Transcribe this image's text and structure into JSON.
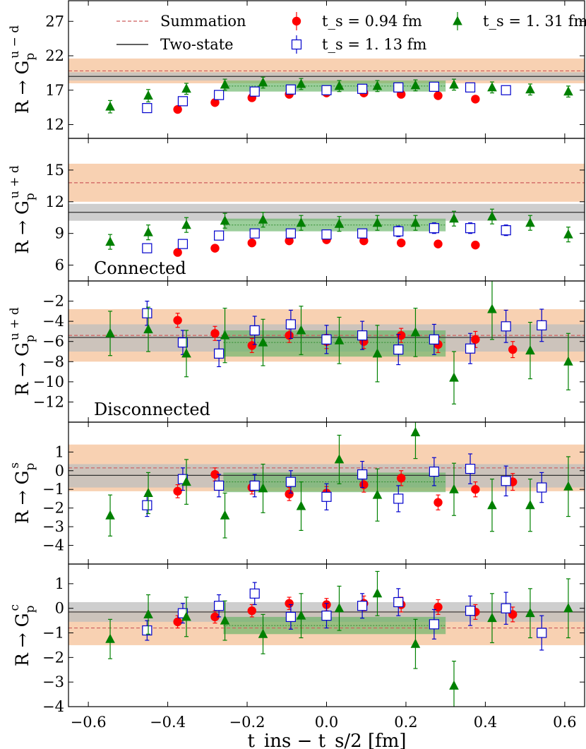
{
  "chart_data": {
    "type": "scatter",
    "title": "",
    "xlabel": "t_ins − t_s/2 [fm]",
    "xlim": [
      -0.65,
      0.65
    ],
    "xticks": [
      -0.6,
      -0.4,
      -0.2,
      0.0,
      0.2,
      0.4,
      0.6
    ],
    "xtick_labels": [
      "−0.6",
      "−0.4",
      "−0.2",
      "0.0",
      "0.2",
      "0.4",
      "0.6"
    ],
    "legend": {
      "placement": "top",
      "entries": [
        {
          "key": "summation",
          "label": "Summation",
          "style": "dashed-line",
          "color": "#cd5c5c"
        },
        {
          "key": "ts094",
          "label": "t_s = 0.94 fm",
          "style": "circle",
          "color": "#ff0000"
        },
        {
          "key": "ts131",
          "label": "t_s = 1. 31 fm",
          "style": "triangle",
          "color": "#008000"
        },
        {
          "key": "twostate",
          "label": "Two-state",
          "style": "solid-line",
          "color": "#000000"
        },
        {
          "key": "ts113",
          "label": "t_s = 1. 13 fm",
          "style": "open-square",
          "color": "#0000cc"
        }
      ]
    },
    "colors": {
      "summation_band": "#f7c9a4",
      "summation_line": "#cd5c5c",
      "twostate_band": "#bdbdbd",
      "twostate_line": "#333333",
      "fit_band": "#66b366",
      "fit_line": "#2e8b2e",
      "ts094": "#ff0000",
      "ts113": "#0000cc",
      "ts131": "#008000"
    },
    "panels": [
      {
        "ylabel_main": "R → G",
        "ylabel_sub": "p",
        "ylabel_sup": "u − d",
        "ylim": [
          10,
          30
        ],
        "yticks": [
          12,
          17,
          22,
          27
        ],
        "annotation": "",
        "summation": {
          "value": 19.8,
          "lo": 18.0,
          "hi": 21.6
        },
        "twostate": {
          "value": 19.0,
          "lo": 18.4,
          "hi": 19.6
        },
        "fit": {
          "xmin": -0.26,
          "xmax": 0.3,
          "value": 17.6,
          "lo": 16.8,
          "hi": 18.4
        },
        "series": [
          {
            "name": "t_s = 0.94 fm",
            "marker": "circle",
            "x": [
              -0.375,
              -0.281,
              -0.188,
              -0.094,
              0.0,
              0.094,
              0.188,
              0.281,
              0.375
            ],
            "y": [
              14.2,
              15.2,
              15.9,
              16.4,
              16.6,
              16.6,
              16.4,
              16.2,
              15.7
            ],
            "err": [
              0.3,
              0.3,
              0.3,
              0.3,
              0.3,
              0.3,
              0.3,
              0.3,
              0.3
            ]
          },
          {
            "name": "t_s = 1. 13 fm",
            "marker": "square",
            "x": [
              -0.452,
              -0.362,
              -0.271,
              -0.181,
              -0.09,
              0.0,
              0.09,
              0.181,
              0.271,
              0.362,
              0.452
            ],
            "y": [
              14.4,
              15.4,
              16.3,
              16.8,
              17.1,
              17.0,
              17.2,
              17.4,
              17.5,
              17.4,
              17.0
            ],
            "err": [
              0.4,
              0.4,
              0.5,
              0.5,
              0.5,
              0.5,
              0.5,
              0.5,
              0.5,
              0.6,
              0.6
            ]
          },
          {
            "name": "t_s = 1. 31 fm",
            "marker": "triangle",
            "x": [
              -0.545,
              -0.449,
              -0.353,
              -0.256,
              -0.16,
              -0.064,
              0.032,
              0.128,
              0.224,
              0.321,
              0.417,
              0.513,
              0.609
            ],
            "y": [
              14.6,
              16.2,
              17.2,
              17.8,
              18.1,
              17.9,
              17.6,
              17.6,
              17.7,
              17.8,
              17.4,
              17.1,
              16.8
            ],
            "err": [
              0.9,
              0.9,
              0.8,
              0.8,
              0.8,
              0.8,
              0.8,
              0.8,
              0.8,
              0.8,
              0.8,
              0.8,
              0.8
            ]
          }
        ]
      },
      {
        "ylabel_main": "R → G",
        "ylabel_sub": "p",
        "ylabel_sup": "u + d",
        "ylim": [
          4.5,
          18
        ],
        "yticks": [
          6,
          9,
          12,
          15
        ],
        "annotation": "Connected",
        "summation": {
          "value": 13.8,
          "lo": 12.0,
          "hi": 15.6
        },
        "twostate": {
          "value": 11.0,
          "lo": 10.2,
          "hi": 11.8
        },
        "fit": {
          "xmin": -0.26,
          "xmax": 0.3,
          "value": 9.8,
          "lo": 9.2,
          "hi": 10.4
        },
        "series": [
          {
            "name": "t_s = 0.94 fm",
            "marker": "circle",
            "x": [
              -0.375,
              -0.281,
              -0.188,
              -0.094,
              0.0,
              0.094,
              0.188,
              0.281,
              0.375
            ],
            "y": [
              7.2,
              7.6,
              8.1,
              8.3,
              8.4,
              8.3,
              8.1,
              8.0,
              7.9
            ],
            "err": [
              0.2,
              0.2,
              0.2,
              0.2,
              0.2,
              0.2,
              0.2,
              0.2,
              0.2
            ]
          },
          {
            "name": "t_s = 1. 13 fm",
            "marker": "square",
            "x": [
              -0.452,
              -0.362,
              -0.271,
              -0.181,
              -0.09,
              0.0,
              0.09,
              0.181,
              0.271,
              0.362,
              0.452
            ],
            "y": [
              7.6,
              8.0,
              8.8,
              9.0,
              9.0,
              8.9,
              9.0,
              9.2,
              9.5,
              9.5,
              9.3
            ],
            "err": [
              0.4,
              0.4,
              0.4,
              0.4,
              0.4,
              0.4,
              0.4,
              0.5,
              0.5,
              0.5,
              0.5
            ]
          },
          {
            "name": "t_s = 1. 31 fm",
            "marker": "triangle",
            "x": [
              -0.545,
              -0.449,
              -0.353,
              -0.256,
              -0.16,
              -0.064,
              0.032,
              0.128,
              0.224,
              0.321,
              0.417,
              0.513,
              0.609
            ],
            "y": [
              8.2,
              9.1,
              9.8,
              10.2,
              10.3,
              10.0,
              9.9,
              10.0,
              10.0,
              10.4,
              10.6,
              10.0,
              8.9
            ],
            "err": [
              0.7,
              0.7,
              0.7,
              0.7,
              0.7,
              0.7,
              0.7,
              0.7,
              0.7,
              0.7,
              0.7,
              0.7,
              0.7
            ]
          }
        ]
      },
      {
        "ylabel_main": "R → G",
        "ylabel_sub": "p",
        "ylabel_sup": "u + d",
        "ylim": [
          -14,
          0
        ],
        "yticks": [
          -12,
          -10,
          -8,
          -6,
          -4,
          -2
        ],
        "ytick_labels": [
          "−12",
          "−10",
          "−8",
          "−6",
          "−4",
          "−2"
        ],
        "annotation": "Disconnected",
        "summation": {
          "value": -5.4,
          "lo": -8.0,
          "hi": -2.8
        },
        "twostate": {
          "value": -5.6,
          "lo": -7.0,
          "hi": -4.3
        },
        "fit": {
          "xmin": -0.26,
          "xmax": 0.3,
          "value": -6.1,
          "lo": -7.5,
          "hi": -4.9
        },
        "series": [
          {
            "name": "t_s = 0.94 fm",
            "marker": "circle",
            "x": [
              -0.375,
              -0.281,
              -0.188,
              -0.094,
              0.0,
              0.094,
              0.188,
              0.281,
              0.375,
              0.469
            ],
            "y": [
              -3.9,
              -5.2,
              -6.4,
              -5.4,
              -6.0,
              -6.0,
              -5.4,
              -6.3,
              -5.8,
              -6.8
            ],
            "err": [
              0.7,
              0.7,
              0.7,
              0.7,
              0.7,
              0.7,
              0.7,
              0.8,
              0.8,
              0.8
            ]
          },
          {
            "name": "t_s = 1. 13 fm",
            "marker": "square",
            "x": [
              -0.452,
              -0.362,
              -0.271,
              -0.181,
              -0.09,
              0.0,
              0.09,
              0.181,
              0.271,
              0.362,
              0.452,
              0.542
            ],
            "y": [
              -3.2,
              -6.1,
              -7.2,
              -4.9,
              -4.3,
              -5.8,
              -5.4,
              -6.8,
              -5.8,
              -6.7,
              -4.5,
              -4.4
            ],
            "err": [
              1.2,
              1.2,
              1.3,
              1.4,
              1.4,
              1.4,
              1.4,
              1.5,
              1.5,
              1.5,
              1.6,
              1.6
            ]
          },
          {
            "name": "t_s = 1. 31 fm",
            "marker": "triangle",
            "x": [
              -0.545,
              -0.449,
              -0.353,
              -0.256,
              -0.16,
              -0.064,
              0.032,
              0.128,
              0.224,
              0.321,
              0.417,
              0.513,
              0.609
            ],
            "y": [
              -5.2,
              -4.8,
              -7.2,
              -5.4,
              -6.1,
              -4.9,
              -5.9,
              -7.2,
              -5.1,
              -9.6,
              -2.8,
              -6.9,
              -8.0
            ],
            "err": [
              2.2,
              2.2,
              2.3,
              2.7,
              2.3,
              2.4,
              2.3,
              2.8,
              2.4,
              2.6,
              3.0,
              2.8,
              2.8
            ]
          }
        ]
      },
      {
        "ylabel_main": "R → G",
        "ylabel_sub": "p",
        "ylabel_sup": "s",
        "ylim": [
          -5,
          2.6
        ],
        "yticks": [
          -4,
          -3,
          -2,
          -1,
          0,
          1
        ],
        "ytick_labels": [
          "−4",
          "−3",
          "−2",
          "−1",
          "0",
          "1"
        ],
        "annotation": "",
        "summation": {
          "value": 0.15,
          "lo": -1.1,
          "hi": 1.4
        },
        "twostate": {
          "value": -0.25,
          "lo": -0.9,
          "hi": 0.35
        },
        "fit": {
          "xmin": -0.26,
          "xmax": 0.3,
          "value": -0.6,
          "lo": -1.15,
          "hi": -0.1
        },
        "series": [
          {
            "name": "t_s = 0.94 fm",
            "marker": "circle",
            "x": [
              -0.375,
              -0.281,
              -0.188,
              -0.094,
              0.0,
              0.094,
              0.188,
              0.281,
              0.375,
              0.469
            ],
            "y": [
              -1.1,
              -0.2,
              -0.9,
              -1.25,
              -1.2,
              -0.75,
              -0.4,
              -1.7,
              -1.0,
              -0.6
            ],
            "err": [
              0.35,
              0.35,
              0.35,
              0.35,
              0.35,
              0.4,
              0.4,
              0.4,
              0.4,
              0.45
            ]
          },
          {
            "name": "t_s = 1. 13 fm",
            "marker": "square",
            "x": [
              -0.452,
              -0.362,
              -0.271,
              -0.181,
              -0.09,
              0.0,
              0.09,
              0.181,
              0.271,
              0.362,
              0.452,
              0.542
            ],
            "y": [
              -1.85,
              -0.45,
              -0.8,
              -0.8,
              -0.6,
              -1.4,
              -0.2,
              -1.5,
              -0.05,
              0.1,
              -0.55,
              -0.9
            ],
            "err": [
              0.6,
              0.6,
              0.6,
              0.6,
              0.6,
              0.7,
              0.7,
              0.7,
              0.75,
              0.8,
              0.8,
              0.8
            ]
          },
          {
            "name": "t_s = 1. 31 fm",
            "marker": "triangle",
            "x": [
              -0.545,
              -0.449,
              -0.353,
              -0.256,
              -0.16,
              -0.064,
              0.032,
              0.128,
              0.224,
              0.321,
              0.417,
              0.513,
              0.609
            ],
            "y": [
              -2.4,
              -1.2,
              -0.6,
              -2.4,
              -0.95,
              -1.9,
              0.6,
              -1.3,
              2.05,
              -1.0,
              -1.85,
              -1.85,
              -0.85
            ],
            "err": [
              1.1,
              1.1,
              1.2,
              1.2,
              1.3,
              1.3,
              1.3,
              1.4,
              1.4,
              1.4,
              1.4,
              1.4,
              1.6
            ]
          }
        ]
      },
      {
        "ylabel_main": "R → G",
        "ylabel_sub": "p",
        "ylabel_sup": "c",
        "ylim": [
          -4,
          1.8
        ],
        "yticks": [
          -4,
          -3,
          -2,
          -1,
          0,
          1
        ],
        "ytick_labels": [
          "−4",
          "−3",
          "−2",
          "−1",
          "0",
          "1"
        ],
        "annotation": "",
        "summation": {
          "value": -0.8,
          "lo": -1.5,
          "hi": -0.1
        },
        "twostate": {
          "value": -0.15,
          "lo": -0.55,
          "hi": 0.25
        },
        "fit": {
          "xmin": -0.26,
          "xmax": 0.3,
          "value": -0.7,
          "lo": -1.05,
          "hi": -0.35
        },
        "series": [
          {
            "name": "t_s = 0.94 fm",
            "marker": "circle",
            "x": [
              -0.375,
              -0.281,
              -0.188,
              -0.094,
              0.0,
              0.094,
              0.188,
              0.281,
              0.375,
              0.469
            ],
            "y": [
              -0.55,
              -0.35,
              -0.1,
              0.2,
              0.15,
              0.2,
              0.15,
              0.05,
              -0.15,
              -0.25
            ],
            "err": [
              0.25,
              0.25,
              0.25,
              0.25,
              0.25,
              0.3,
              0.3,
              0.3,
              0.3,
              0.3
            ]
          },
          {
            "name": "t_s = 1. 13 fm",
            "marker": "square",
            "x": [
              -0.452,
              -0.362,
              -0.271,
              -0.181,
              -0.09,
              0.0,
              0.09,
              0.181,
              0.271,
              0.362,
              0.452,
              0.542
            ],
            "y": [
              -0.9,
              -0.2,
              0.1,
              0.6,
              -0.35,
              -0.3,
              0.1,
              0.25,
              -0.65,
              -0.1,
              0.0,
              -1.0
            ],
            "err": [
              0.4,
              0.4,
              0.45,
              0.45,
              0.5,
              0.5,
              0.5,
              0.55,
              0.6,
              0.6,
              0.65,
              0.7
            ]
          },
          {
            "name": "t_s = 1. 31 fm",
            "marker": "triangle",
            "x": [
              -0.545,
              -0.449,
              -0.353,
              -0.256,
              -0.16,
              -0.064,
              0.032,
              0.128,
              0.224,
              0.321,
              0.417,
              0.513,
              0.609
            ],
            "y": [
              -1.25,
              -0.25,
              -0.35,
              -0.5,
              -1.05,
              -0.3,
              0.0,
              0.6,
              -1.45,
              -3.15,
              -0.4,
              -0.2,
              0.0
            ],
            "err": [
              0.8,
              0.8,
              0.8,
              0.8,
              0.8,
              0.9,
              0.9,
              0.9,
              1.0,
              1.0,
              1.0,
              1.0,
              1.2
            ]
          }
        ]
      }
    ]
  }
}
